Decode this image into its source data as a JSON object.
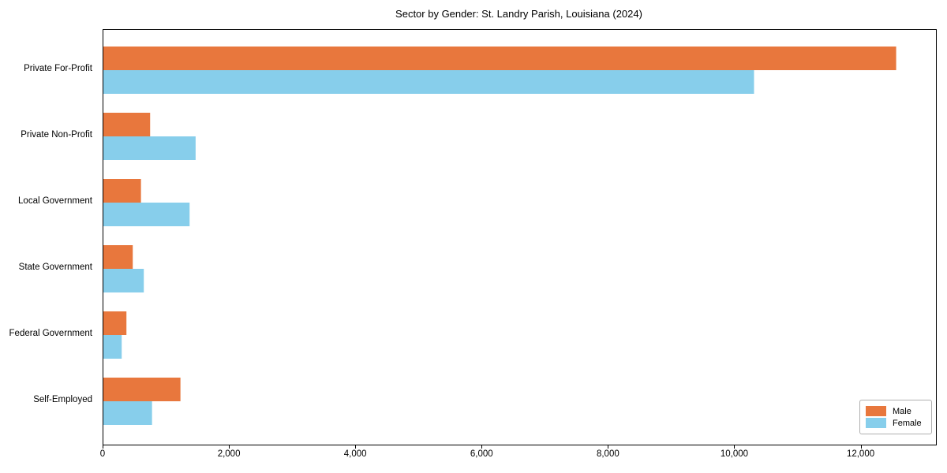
{
  "figure_title": "Sector by Gender: St. Landry Parish, Louisiana (2024)",
  "chart_data": {
    "type": "bar",
    "orientation": "horizontal",
    "title": "Sector by Gender: St. Landry Parish, Louisiana (2024)",
    "xlabel": "",
    "ylabel": "",
    "grid": false,
    "categories": [
      "Private For-Profit",
      "Private Non-Profit",
      "Local Government",
      "State Government",
      "Federal Government",
      "Self-Employed"
    ],
    "series": [
      {
        "name": "Male",
        "color": "#e8773d",
        "values": [
          12550,
          740,
          595,
          465,
          365,
          1220
        ]
      },
      {
        "name": "Female",
        "color": "#87ceeb",
        "values": [
          10300,
          1460,
          1365,
          640,
          290,
          770
        ]
      }
    ],
    "xlim": [
      0,
      13180
    ],
    "xticks": {
      "values": [
        0,
        2000,
        4000,
        6000,
        8000,
        10000,
        12000
      ],
      "labels": [
        "0",
        "2,000",
        "4,000",
        "6,000",
        "8,000",
        "10,000",
        "12,000"
      ]
    },
    "legend": {
      "position": "lower right",
      "entries": [
        "Male",
        "Female"
      ]
    }
  }
}
